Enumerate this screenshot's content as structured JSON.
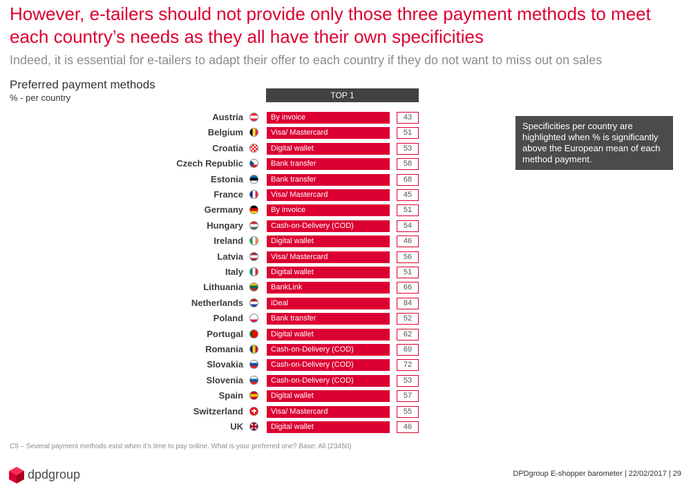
{
  "title": "However, e-tailers should not provide only those three payment methods to meet each country’s needs as they all have their own specificities",
  "subtitle": "Indeed, it is essential for e-tailers to adapt their offer to each country if they do not want to miss out on sales",
  "section_title": "Preferred payment methods",
  "section_subtitle": "% - per country",
  "note": "Specificities per country are highlighted when % is significantly above the European mean of each method payment.",
  "footnote": "C5 – Several payment methods exist when it’s time to pay online. What is your preferred one? Base: All (23450)",
  "footer": {
    "logo_text": "dpdgroup",
    "source": "DPDgroup E-shopper barometer |  22/02/2017  |   29"
  },
  "colors": {
    "accent": "#dc0032",
    "header_bg": "#424242",
    "note_bg": "#4b4b4b"
  },
  "chart_data": {
    "type": "table",
    "header": "TOP 1",
    "rows": [
      {
        "country": "Austria",
        "method": "By invoice",
        "value": 43,
        "flag": [
          "#ed2939",
          "#ffffff",
          "#ed2939"
        ]
      },
      {
        "country": "Belgium",
        "method": "Visa/ Mastercard",
        "value": 51,
        "flag": [
          "#000000",
          "#fae042",
          "#ed2939"
        ],
        "vertical": true
      },
      {
        "country": "Croatia",
        "method": "Digital wallet",
        "value": 53,
        "flag": [
          "#ff0000",
          "#ffffff",
          "#171796"
        ],
        "checker": true
      },
      {
        "country": "Czech Republic",
        "method": "Bank transfer",
        "value": 58,
        "flag": [
          "#ffffff",
          "#ffffff",
          "#d7141a"
        ],
        "triangle": "#11457e"
      },
      {
        "country": "Estonia",
        "method": "Bank transfer",
        "value": 68,
        "flag": [
          "#0072ce",
          "#000000",
          "#ffffff"
        ]
      },
      {
        "country": "France",
        "method": "Visa/ Mastercard",
        "value": 45,
        "flag": [
          "#002395",
          "#ffffff",
          "#ed2939"
        ],
        "vertical": true
      },
      {
        "country": "Germany",
        "method": "By invoice",
        "value": 51,
        "flag": [
          "#000000",
          "#dd0000",
          "#ffce00"
        ]
      },
      {
        "country": "Hungary",
        "method": "Cash-on-Delivery (COD)",
        "value": 54,
        "flag": [
          "#cd2a3e",
          "#ffffff",
          "#436f4d"
        ]
      },
      {
        "country": "Ireland",
        "method": "Digital wallet",
        "value": 46,
        "flag": [
          "#169b62",
          "#ffffff",
          "#ff883e"
        ],
        "vertical": true
      },
      {
        "country": "Latvia",
        "method": "Visa/ Mastercard",
        "value": 56,
        "flag": [
          "#9e3039",
          "#ffffff",
          "#9e3039"
        ]
      },
      {
        "country": "Italy",
        "method": "Digital wallet",
        "value": 51,
        "flag": [
          "#009246",
          "#ffffff",
          "#ce2b37"
        ],
        "vertical": true
      },
      {
        "country": "Lithuania",
        "method": "BankLink",
        "value": 66,
        "flag": [
          "#fdb913",
          "#006a44",
          "#c1272d"
        ]
      },
      {
        "country": "Netherlands",
        "method": "iDeal",
        "value": 84,
        "flag": [
          "#ae1c28",
          "#ffffff",
          "#21468b"
        ]
      },
      {
        "country": "Poland",
        "method": "Bank transfer",
        "value": 52,
        "flag": [
          "#ffffff",
          "#ffffff",
          "#dc143c"
        ]
      },
      {
        "country": "Portugal",
        "method": "Digital wallet",
        "value": 62,
        "flag": [
          "#006600",
          "#ff0000",
          "#ff0000"
        ],
        "vertical": true
      },
      {
        "country": "Romania",
        "method": "Cash-on-Delivery (COD)",
        "value": 69,
        "flag": [
          "#002b7f",
          "#fcd116",
          "#ce1126"
        ],
        "vertical": true
      },
      {
        "country": "Slovakia",
        "method": "Cash-on-Delivery (COD)",
        "value": 72,
        "flag": [
          "#ffffff",
          "#0b4ea2",
          "#ee1c25"
        ]
      },
      {
        "country": "Slovenia",
        "method": "Cash-on-Delivery (COD)",
        "value": 53,
        "flag": [
          "#ffffff",
          "#005da4",
          "#ed1c24"
        ]
      },
      {
        "country": "Spain",
        "method": "Digital wallet",
        "value": 57,
        "flag": [
          "#c60b1e",
          "#ffc400",
          "#c60b1e"
        ]
      },
      {
        "country": "Switzerland",
        "method": "Visa/ Mastercard",
        "value": 55,
        "flag": [
          "#ff0000",
          "#ff0000",
          "#ff0000"
        ],
        "cross": true
      },
      {
        "country": "UK",
        "method": "Digital wallet",
        "value": 46,
        "flag": [
          "#012169",
          "#012169",
          "#012169"
        ],
        "union": true
      }
    ]
  }
}
